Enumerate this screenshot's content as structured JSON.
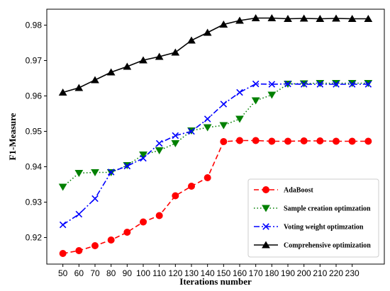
{
  "chart_data": {
    "type": "line",
    "xlabel": "Iterations number",
    "ylabel": "F1-Measure",
    "x": [
      50,
      60,
      70,
      80,
      90,
      100,
      110,
      120,
      130,
      140,
      150,
      160,
      170,
      180,
      190,
      200,
      210,
      220,
      230,
      240
    ],
    "x_ticks": [
      50,
      60,
      70,
      80,
      90,
      100,
      110,
      120,
      130,
      140,
      150,
      160,
      170,
      180,
      190,
      200,
      210,
      220,
      230
    ],
    "xlim": [
      40,
      250
    ],
    "ylim": [
      0.9125,
      0.9845
    ],
    "y_ticks": [
      0.92,
      0.93,
      0.94,
      0.95,
      0.96,
      0.97,
      0.98
    ],
    "grid": false,
    "legend_position": "bottom-right",
    "series": [
      {
        "name": "AdaBoost",
        "color": "#ff0000",
        "line_style": "dashed",
        "marker": "circle",
        "values": [
          0.9155,
          0.9163,
          0.9177,
          0.9193,
          0.9215,
          0.9244,
          0.9262,
          0.9318,
          0.9345,
          0.9369,
          0.9471,
          0.9474,
          0.9474,
          0.9472,
          0.9472,
          0.9473,
          0.9473,
          0.9472,
          0.9472,
          0.9472
        ]
      },
      {
        "name": "Sample creation optimzation",
        "color": "#008000",
        "line_style": "dotted",
        "marker": "triangle-down",
        "values": [
          0.9343,
          0.9382,
          0.9384,
          0.9384,
          0.9404,
          0.9434,
          0.9446,
          0.9466,
          0.9502,
          0.9511,
          0.9517,
          0.9535,
          0.9587,
          0.9603,
          0.9634,
          0.9635,
          0.9636,
          0.9636,
          0.9636,
          0.9636
        ]
      },
      {
        "name": "Voting weight optimzation",
        "color": "#0000ff",
        "line_style": "dashdot",
        "marker": "x",
        "values": [
          0.9236,
          0.9266,
          0.931,
          0.9385,
          0.9402,
          0.9424,
          0.9466,
          0.9488,
          0.95,
          0.9535,
          0.9577,
          0.961,
          0.9634,
          0.9633,
          0.9634,
          0.9633,
          0.9633,
          0.9633,
          0.9633,
          0.9633
        ]
      },
      {
        "name": "Comprehensive optimization",
        "color": "#000000",
        "line_style": "solid",
        "marker": "triangle-up",
        "values": [
          0.961,
          0.9623,
          0.9645,
          0.9667,
          0.9683,
          0.9701,
          0.9711,
          0.9723,
          0.9757,
          0.9779,
          0.9802,
          0.9813,
          0.982,
          0.982,
          0.9818,
          0.9819,
          0.9818,
          0.9819,
          0.9818,
          0.9818
        ]
      }
    ]
  }
}
